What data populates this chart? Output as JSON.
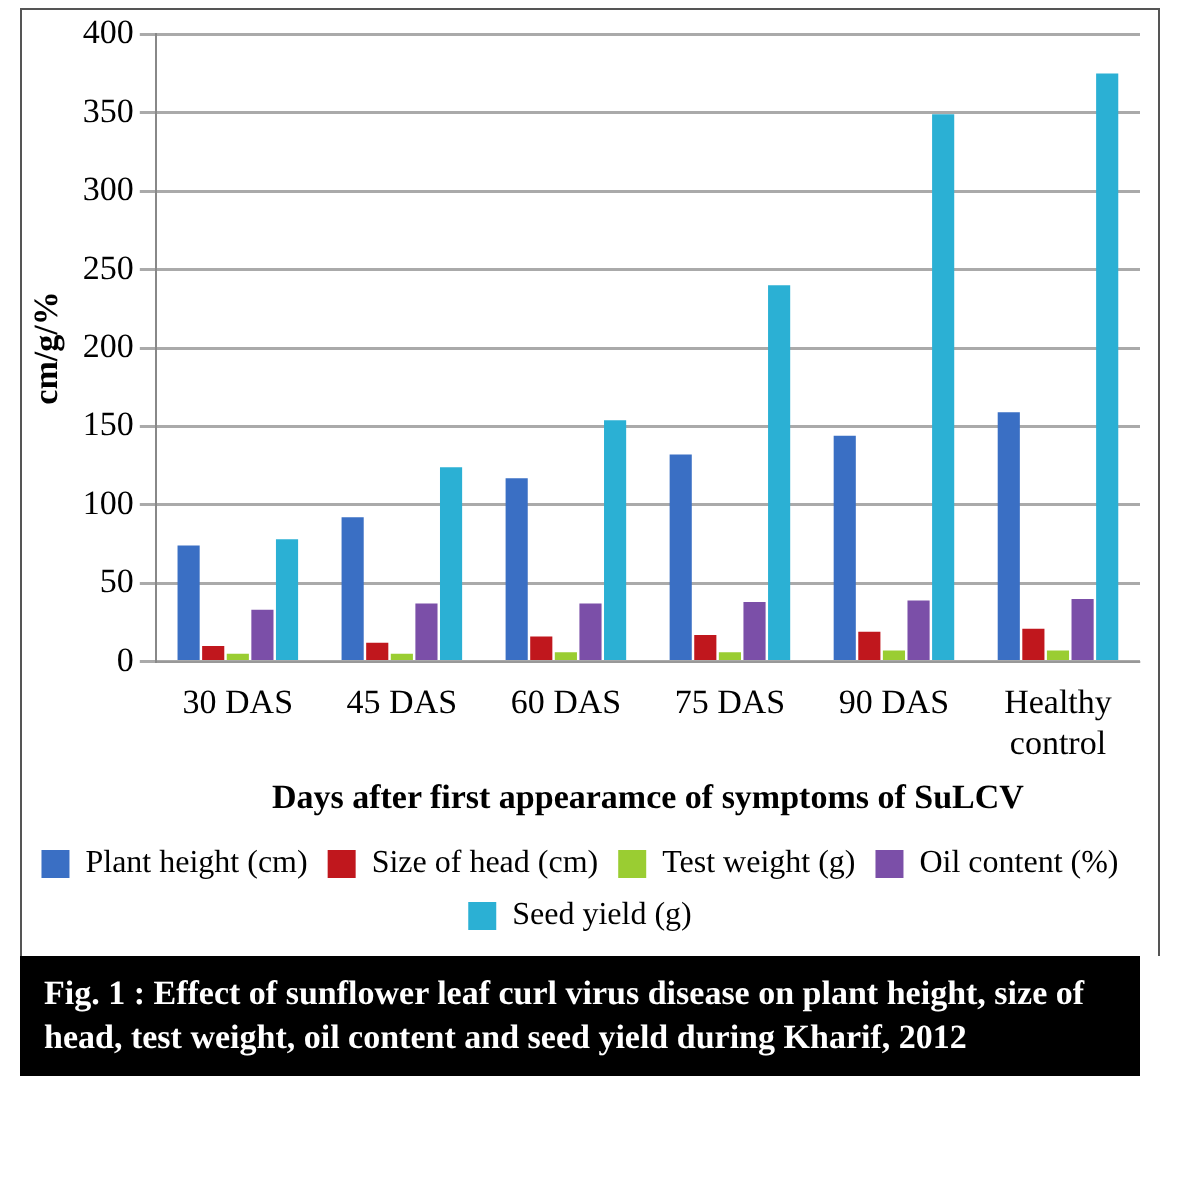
{
  "chart_data": {
    "type": "bar",
    "xlabel": "Days after first appearamce of symptoms of SuLCV",
    "ylabel": "cm/g/%",
    "categories": [
      "30 DAS",
      "45 DAS",
      "60 DAS",
      "75 DAS",
      "90 DAS",
      "Healthy control"
    ],
    "series": [
      {
        "name": "Plant height (cm)",
        "color": "#3a6fc4",
        "values": [
          74,
          92,
          117,
          132,
          144,
          159
        ]
      },
      {
        "name": "Size of head (cm)",
        "color": "#c0171d",
        "values": [
          10,
          12,
          16,
          17,
          19,
          21
        ]
      },
      {
        "name": "Test weight (g)",
        "color": "#9acd32",
        "values": [
          5,
          5,
          6,
          6,
          7,
          7
        ]
      },
      {
        "name": "Oil content (%)",
        "color": "#7b4fa8",
        "values": [
          33,
          37,
          37,
          38,
          39,
          40
        ]
      },
      {
        "name": "Seed yield (g)",
        "color": "#2bb0d4",
        "values": [
          78,
          124,
          154,
          240,
          349,
          375
        ]
      }
    ],
    "ylim": [
      0,
      400
    ],
    "yticks": [
      0,
      50,
      100,
      150,
      200,
      250,
      300,
      350,
      400
    ],
    "grid": "y",
    "legend": "bottom",
    "annotations": [
      "Fig. 1 :   Effect of sunflower leaf curl virus disease on plant height, size of head, test weight, oil content and seed yield during Kharif, 2012"
    ]
  }
}
